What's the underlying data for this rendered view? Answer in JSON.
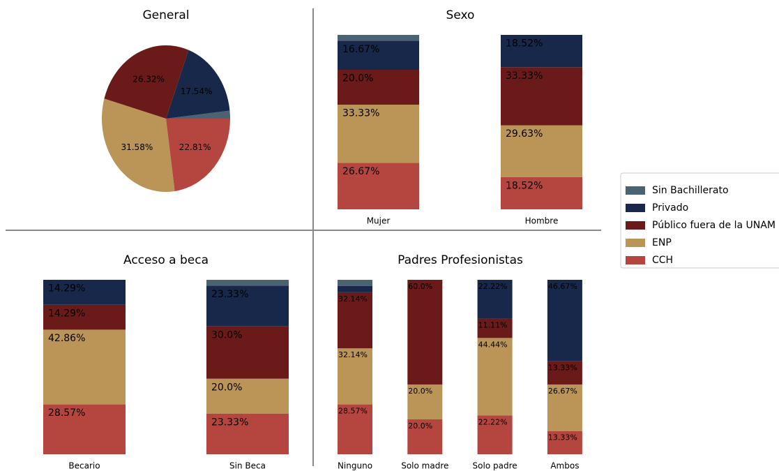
{
  "legend": {
    "position": "right",
    "items": [
      {
        "name": "Sin Bachillerato",
        "color": "#4a6272"
      },
      {
        "name": "Privado",
        "color": "#17284a"
      },
      {
        "name": "Público fuera de la UNAM",
        "color": "#6b1a1a"
      },
      {
        "name": "ENP",
        "color": "#bb9457"
      },
      {
        "name": "CCH",
        "color": "#b5453f"
      }
    ]
  },
  "chart_data": [
    {
      "type": "pie",
      "title": "General",
      "values": [
        1.75,
        17.54,
        26.32,
        31.58,
        22.81
      ],
      "value_labels": [
        null,
        "17.54%",
        "26.32%",
        "31.58%",
        "22.81%"
      ]
    },
    {
      "type": "stacked_bar",
      "title": "Sexo",
      "categories": [
        "Mujer",
        "Hombre"
      ],
      "ylim": [
        0,
        100
      ],
      "series": [
        {
          "values": [
            3.33,
            0
          ],
          "value_labels": [
            null,
            null
          ]
        },
        {
          "values": [
            16.67,
            18.52
          ],
          "value_labels": [
            "16.67%",
            "18.52%"
          ]
        },
        {
          "values": [
            20.0,
            33.33
          ],
          "value_labels": [
            "20.0%",
            "33.33%"
          ]
        },
        {
          "values": [
            33.33,
            29.63
          ],
          "value_labels": [
            "33.33%",
            "29.63%"
          ]
        },
        {
          "values": [
            26.67,
            18.52
          ],
          "value_labels": [
            "26.67%",
            "18.52%"
          ]
        }
      ]
    },
    {
      "type": "stacked_bar",
      "title": "Acceso a beca",
      "categories": [
        "Becario",
        "Sin Beca"
      ],
      "ylim": [
        0,
        100
      ],
      "series": [
        {
          "values": [
            0,
            3.33
          ],
          "value_labels": [
            null,
            null
          ]
        },
        {
          "values": [
            14.29,
            23.33
          ],
          "value_labels": [
            "14.29%",
            "23.33%"
          ]
        },
        {
          "values": [
            14.29,
            30.0
          ],
          "value_labels": [
            "14.29%",
            "30.0%"
          ]
        },
        {
          "values": [
            42.86,
            20.0
          ],
          "value_labels": [
            "42.86%",
            "20.0%"
          ]
        },
        {
          "values": [
            28.57,
            23.33
          ],
          "value_labels": [
            "28.57%",
            "23.33%"
          ]
        }
      ]
    },
    {
      "type": "stacked_bar",
      "title": "Padres Profesionistas",
      "categories": [
        "Ninguno",
        "Solo madre",
        "Solo padre",
        "Ambos"
      ],
      "ylim": [
        0,
        100
      ],
      "series": [
        {
          "values": [
            3.57,
            0,
            0,
            0
          ],
          "value_labels": [
            null,
            null,
            null,
            null
          ]
        },
        {
          "values": [
            3.57,
            0,
            22.22,
            46.67
          ],
          "value_labels": [
            null,
            null,
            "22.22%",
            "46.67%"
          ]
        },
        {
          "values": [
            32.14,
            60.0,
            11.11,
            13.33
          ],
          "value_labels": [
            "32.14%",
            "60.0%",
            "11.11%",
            "13.33%"
          ]
        },
        {
          "values": [
            32.14,
            20.0,
            44.44,
            26.67
          ],
          "value_labels": [
            "32.14%",
            "20.0%",
            "44.44%",
            "26.67%"
          ]
        },
        {
          "values": [
            28.57,
            20.0,
            22.22,
            13.33
          ],
          "value_labels": [
            "28.57%",
            "20.0%",
            "22.22%",
            "13.33%"
          ]
        }
      ]
    }
  ]
}
